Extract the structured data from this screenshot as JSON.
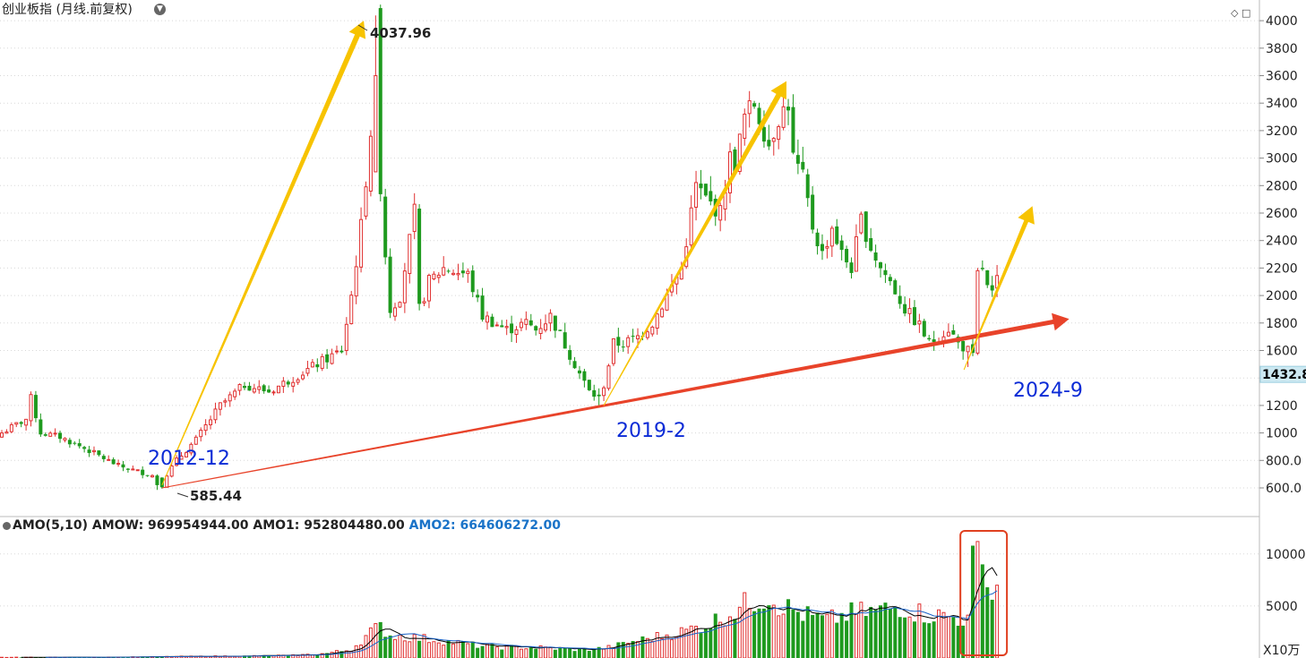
{
  "header": {
    "title": "创业板指 (月线.前复权)",
    "title_dropdown_icon": "chevron-down-icon",
    "icons": [
      "diamond-icon",
      "square-icon"
    ]
  },
  "price_axis": {
    "ticks": [
      "4000",
      "3800",
      "3600",
      "3400",
      "3200",
      "3000",
      "2800",
      "2600",
      "2400",
      "2200",
      "2000",
      "1800",
      "1600",
      "1400",
      "1200",
      "1000",
      "800.0",
      "600.0"
    ],
    "current_price_label": "1432.8"
  },
  "volume_axis": {
    "ticks": [
      "10000",
      "5000"
    ],
    "unit": "X10万"
  },
  "indicator": {
    "label": "AMO(5,10)",
    "amow": "AMOW: 969954944.00",
    "amo1": "AMO1: 952804480.00",
    "amo2": "AMO2: 664606272.00"
  },
  "annotations": {
    "high": "4037.96",
    "low": "585.44",
    "p2012": "2012-12",
    "p2019": "2019-2",
    "p2024": "2024-9"
  },
  "colors": {
    "up": "#e03030",
    "down": "#1e9a1e",
    "arrow_yellow": "#f7c300",
    "arrow_red": "#e8432a",
    "label_blue": "#0b2bd6",
    "ma1": "#000000",
    "ma2": "#1a63c8"
  },
  "chart_data": {
    "type": "candlestick",
    "interval": "monthly",
    "x_start": "2010-06",
    "x_end": "2024-12",
    "ylim": [
      450,
      4100
    ],
    "close_anchors": [
      [
        0,
        1000
      ],
      [
        5,
        1100
      ],
      [
        6,
        1250
      ],
      [
        8,
        1000
      ],
      [
        12,
        970
      ],
      [
        18,
        870
      ],
      [
        24,
        760
      ],
      [
        30,
        700
      ],
      [
        32,
        680
      ],
      [
        33,
        620
      ],
      [
        34,
        700
      ],
      [
        36,
        800
      ],
      [
        40,
        950
      ],
      [
        45,
        1200
      ],
      [
        50,
        1350
      ],
      [
        55,
        1300
      ],
      [
        60,
        1400
      ],
      [
        65,
        1500
      ],
      [
        70,
        1600
      ],
      [
        72,
        2000
      ],
      [
        74,
        2500
      ],
      [
        76,
        3200
      ],
      [
        77,
        4000
      ],
      [
        78,
        2800
      ],
      [
        79,
        2300
      ],
      [
        80,
        1900
      ],
      [
        82,
        2000
      ],
      [
        85,
        2600
      ],
      [
        86,
        1900
      ],
      [
        88,
        2100
      ],
      [
        91,
        2200
      ],
      [
        96,
        2150
      ],
      [
        99,
        1850
      ],
      [
        104,
        1750
      ],
      [
        108,
        1800
      ],
      [
        110,
        1750
      ],
      [
        113,
        1850
      ],
      [
        118,
        1500
      ],
      [
        121,
        1300
      ],
      [
        123,
        1250
      ],
      [
        124,
        1350
      ],
      [
        126,
        1650
      ],
      [
        128,
        1650
      ],
      [
        131,
        1700
      ],
      [
        134,
        1800
      ],
      [
        137,
        2000
      ],
      [
        140,
        2200
      ],
      [
        143,
        2800
      ],
      [
        145,
        2700
      ],
      [
        148,
        2600
      ],
      [
        150,
        3000
      ],
      [
        151,
        2950
      ],
      [
        153,
        3300
      ],
      [
        155,
        3400
      ],
      [
        158,
        3100
      ],
      [
        160,
        3300
      ],
      [
        162,
        3400
      ],
      [
        163,
        3000
      ],
      [
        165,
        2850
      ],
      [
        167,
        2500
      ],
      [
        169,
        2300
      ],
      [
        171,
        2500
      ],
      [
        173,
        2300
      ],
      [
        175,
        2200
      ],
      [
        177,
        2550
      ],
      [
        179,
        2350
      ],
      [
        181,
        2200
      ],
      [
        183,
        2100
      ],
      [
        186,
        1900
      ],
      [
        189,
        1780
      ],
      [
        191,
        1650
      ],
      [
        193,
        1700
      ],
      [
        195,
        1760
      ],
      [
        197,
        1650
      ],
      [
        199,
        1600
      ],
      [
        200,
        1550
      ],
      [
        201,
        2150
      ],
      [
        202,
        2200
      ],
      [
        203,
        2050
      ],
      [
        204,
        2000
      ],
      [
        205,
        2100
      ]
    ],
    "amo_anchors": [
      [
        0,
        60
      ],
      [
        20,
        80
      ],
      [
        40,
        150
      ],
      [
        60,
        250
      ],
      [
        66,
        400
      ],
      [
        72,
        800
      ],
      [
        76,
        2500
      ],
      [
        78,
        3000
      ],
      [
        80,
        2200
      ],
      [
        90,
        1700
      ],
      [
        100,
        1100
      ],
      [
        110,
        1000
      ],
      [
        120,
        800
      ],
      [
        125,
        1000
      ],
      [
        130,
        1600
      ],
      [
        140,
        2500
      ],
      [
        145,
        3200
      ],
      [
        150,
        4300
      ],
      [
        155,
        5600
      ],
      [
        158,
        6000
      ],
      [
        160,
        5200
      ],
      [
        165,
        4200
      ],
      [
        170,
        3600
      ],
      [
        175,
        4300
      ],
      [
        180,
        4500
      ],
      [
        185,
        5000
      ],
      [
        190,
        4200
      ],
      [
        195,
        4000
      ],
      [
        199,
        3600
      ],
      [
        200,
        10800
      ],
      [
        201,
        11200
      ],
      [
        202,
        9000
      ],
      [
        203,
        6800
      ],
      [
        204,
        5600
      ],
      [
        205,
        7000
      ]
    ],
    "amo_ylim": [
      0,
      12300
    ],
    "ma_periods": [
      5,
      10
    ]
  }
}
